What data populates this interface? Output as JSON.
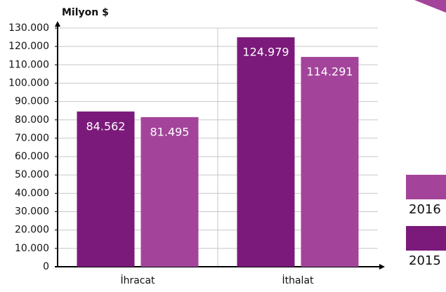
{
  "chart_data": {
    "type": "bar",
    "ylabel": "Milyon $",
    "categories": [
      "İhracat",
      "İthalat"
    ],
    "series": [
      {
        "name": "2015",
        "color": "#7b1a7a",
        "values": [
          84562,
          124979
        ],
        "value_labels": [
          "84.562",
          "124.979"
        ]
      },
      {
        "name": "2016",
        "color": "#a3449a",
        "values": [
          81495,
          114291
        ],
        "value_labels": [
          "81.495",
          "114.291"
        ]
      }
    ],
    "ylim": [
      0,
      130000
    ],
    "yticks": [
      0,
      {
        "value": 10000,
        "label": "10.000"
      },
      {
        "value": 20000,
        "label": "20.000"
      },
      {
        "value": 30000,
        "label": "30.000"
      },
      {
        "value": 40000,
        "label": "40.000"
      },
      {
        "value": 50000,
        "label": "50.000"
      },
      {
        "value": 60000,
        "label": "60.000"
      },
      {
        "value": 70000,
        "label": "70.000"
      },
      {
        "value": 80000,
        "label": "80.000"
      },
      {
        "value": 90000,
        "label": "90.000"
      },
      {
        "value": 100000,
        "label": "100.000"
      },
      {
        "value": 110000,
        "label": "110.000"
      },
      {
        "value": 120000,
        "label": "120.000"
      },
      {
        "value": 130000,
        "label": "130.000"
      }
    ],
    "grid": true
  }
}
